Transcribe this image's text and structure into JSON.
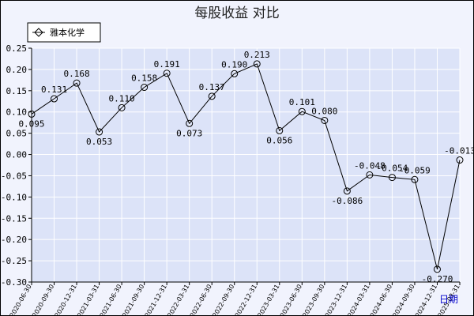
{
  "chart_data": {
    "type": "line",
    "title": "每股收益 对比",
    "xlabel": "日期",
    "ylabel": "",
    "ylim": [
      -0.3,
      0.25
    ],
    "yticks": [
      "0.25",
      "0.20",
      "0.15",
      "0.10",
      "0.05",
      "0.00",
      "-0.05",
      "-0.10",
      "-0.15",
      "-0.20",
      "-0.25",
      "-0.30"
    ],
    "ytick_values": [
      0.25,
      0.2,
      0.15,
      0.1,
      0.05,
      0.0,
      -0.05,
      -0.1,
      -0.15,
      -0.2,
      -0.25,
      -0.3
    ],
    "grid": true,
    "legend_position": "top-left",
    "colors": {
      "plot_bg": "#dce3f8",
      "frame_bg": "#f1f3fd",
      "grid": "#ffffff",
      "line": "#000000"
    },
    "categories": [
      "2020-06-30",
      "2020-09-30",
      "2020-12-31",
      "2021-03-31",
      "2021-06-30",
      "2021-09-30",
      "2021-12-31",
      "2022-03-31",
      "2022-06-30",
      "2022-09-30",
      "2022-12-31",
      "2023-03-31",
      "2023-06-30",
      "2023-09-30",
      "2023-12-31",
      "2024-03-31",
      "2024-06-30",
      "2024-09-30",
      "2024-12-31",
      "2025-03-31"
    ],
    "series": [
      {
        "name": "雅本化学",
        "values": [
          0.095,
          0.131,
          0.168,
          0.053,
          0.11,
          0.158,
          0.191,
          0.073,
          0.137,
          0.19,
          0.213,
          0.056,
          0.101,
          0.08,
          -0.086,
          -0.048,
          -0.054,
          -0.059,
          -0.27,
          -0.013
        ],
        "labels": [
          "0.095",
          "0.131",
          "0.168",
          "0.053",
          "0.110",
          "0.158",
          "0.191",
          "0.073",
          "0.137",
          "0.190",
          "0.213",
          "0.056",
          "0.101",
          "0.080",
          "-0.086",
          "-0.048",
          "-0.054",
          "-0.059",
          "-0.270",
          "-0.013"
        ]
      }
    ]
  }
}
